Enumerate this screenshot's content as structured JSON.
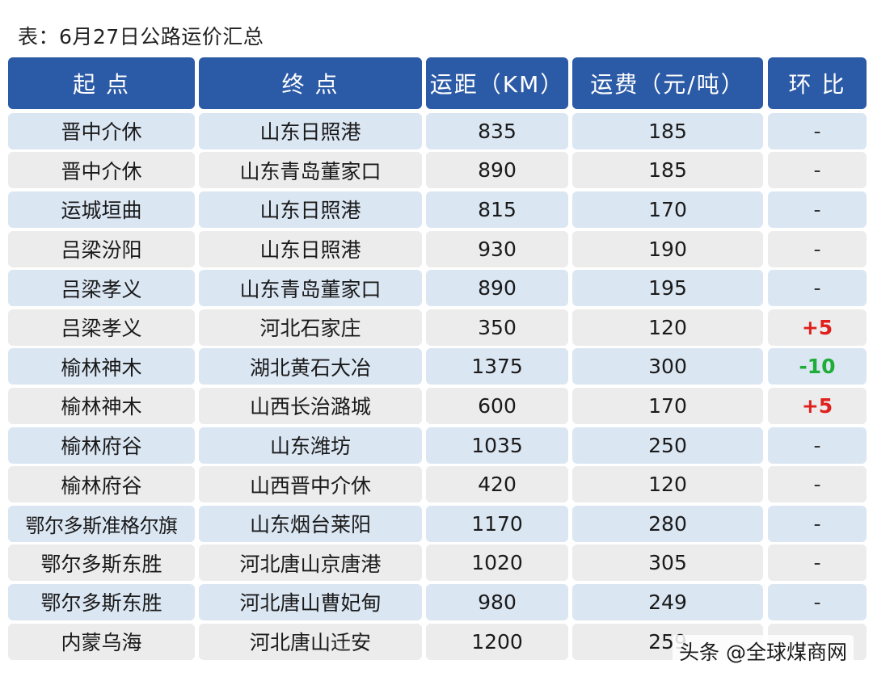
{
  "caption": "表：6月27日公路运价汇总",
  "headers": [
    "起  点",
    "终  点",
    "运距（KM）",
    "运费（元/吨）",
    "环  比"
  ],
  "rows": [
    {
      "origin": "晋中介休",
      "destination": "山东日照港",
      "distance": "835",
      "fee": "185",
      "change": "-",
      "trend": "flat"
    },
    {
      "origin": "晋中介休",
      "destination": "山东青岛董家口",
      "distance": "890",
      "fee": "185",
      "change": "-",
      "trend": "flat"
    },
    {
      "origin": "运城垣曲",
      "destination": "山东日照港",
      "distance": "815",
      "fee": "170",
      "change": "-",
      "trend": "flat"
    },
    {
      "origin": "吕梁汾阳",
      "destination": "山东日照港",
      "distance": "930",
      "fee": "190",
      "change": "-",
      "trend": "flat"
    },
    {
      "origin": "吕梁孝义",
      "destination": "山东青岛董家口",
      "distance": "890",
      "fee": "195",
      "change": "-",
      "trend": "flat"
    },
    {
      "origin": "吕梁孝义",
      "destination": "河北石家庄",
      "distance": "350",
      "fee": "120",
      "change": "+5",
      "trend": "up"
    },
    {
      "origin": "榆林神木",
      "destination": "湖北黄石大冶",
      "distance": "1375",
      "fee": "300",
      "change": "-10",
      "trend": "down"
    },
    {
      "origin": "榆林神木",
      "destination": "山西长治潞城",
      "distance": "600",
      "fee": "170",
      "change": "+5",
      "trend": "up"
    },
    {
      "origin": "榆林府谷",
      "destination": "山东潍坊",
      "distance": "1035",
      "fee": "250",
      "change": "-",
      "trend": "flat"
    },
    {
      "origin": "榆林府谷",
      "destination": "山西晋中介休",
      "distance": "420",
      "fee": "120",
      "change": "-",
      "trend": "flat"
    },
    {
      "origin": "鄂尔多斯准格尔旗",
      "destination": "山东烟台莱阳",
      "distance": "1170",
      "fee": "280",
      "change": "-",
      "trend": "flat"
    },
    {
      "origin": "鄂尔多斯东胜",
      "destination": "河北唐山京唐港",
      "distance": "1020",
      "fee": "305",
      "change": "-",
      "trend": "flat"
    },
    {
      "origin": "鄂尔多斯东胜",
      "destination": "河北唐山曹妃甸",
      "distance": "980",
      "fee": "249",
      "change": "-",
      "trend": "flat"
    },
    {
      "origin": "内蒙乌海",
      "destination": "河北唐山迁安",
      "distance": "1200",
      "fee": "259",
      "change": "",
      "trend": "flat"
    }
  ],
  "colors": {
    "header_bg": "#2b5aa6",
    "row_even_bg": "#dbe6f3",
    "row_odd_bg": "#ececec",
    "up": "#e0201d",
    "down": "#1eae38"
  },
  "watermark": "头条 @全球煤商网"
}
